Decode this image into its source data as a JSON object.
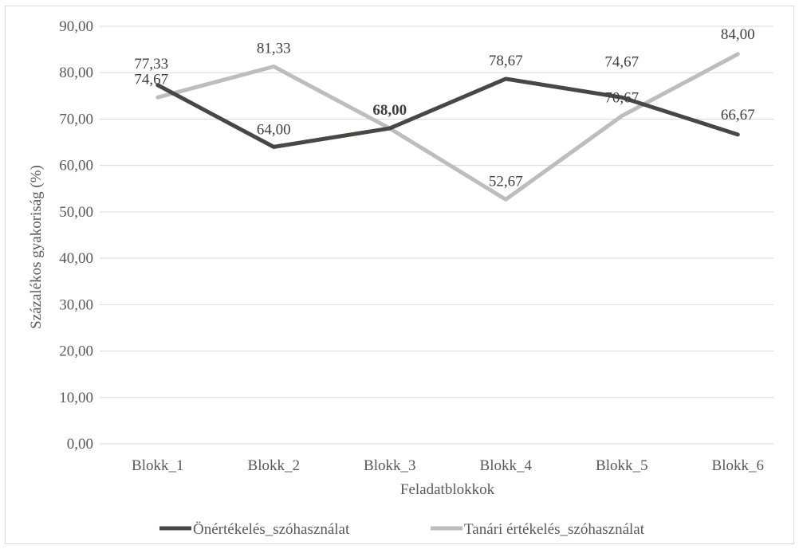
{
  "chart_data": {
    "type": "line",
    "title": "",
    "xlabel": "Feladatblokkok",
    "ylabel": "Százalékos gyakoriság (%)",
    "ylim": [
      0,
      90
    ],
    "ytick_step": 10,
    "ytick_labels": [
      "0,00",
      "10,00",
      "20,00",
      "30,00",
      "40,00",
      "50,00",
      "60,00",
      "70,00",
      "80,00",
      "90,00"
    ],
    "categories": [
      "Blokk_1",
      "Blokk_2",
      "Blokk_3",
      "Blokk_4",
      "Blokk_5",
      "Blokk_6"
    ],
    "grid": true,
    "legend_position": "bottom",
    "series": [
      {
        "name": "Önértékelés_szóhasználat",
        "color": "#4a4646",
        "values": [
          77.33,
          64.0,
          68.0,
          78.67,
          74.67,
          66.67
        ],
        "labels": [
          "77,33",
          "64,00",
          "68,00",
          "78,67",
          "74,67",
          "66,67"
        ]
      },
      {
        "name": "Tanári értékelés_szóhasználat",
        "color": "#bdbdbd",
        "values": [
          74.67,
          81.33,
          68.0,
          52.67,
          70.67,
          84.0
        ],
        "labels": [
          "74,67",
          "81,33",
          "68,00",
          "52,67",
          "70,67",
          "84,00"
        ]
      }
    ]
  }
}
